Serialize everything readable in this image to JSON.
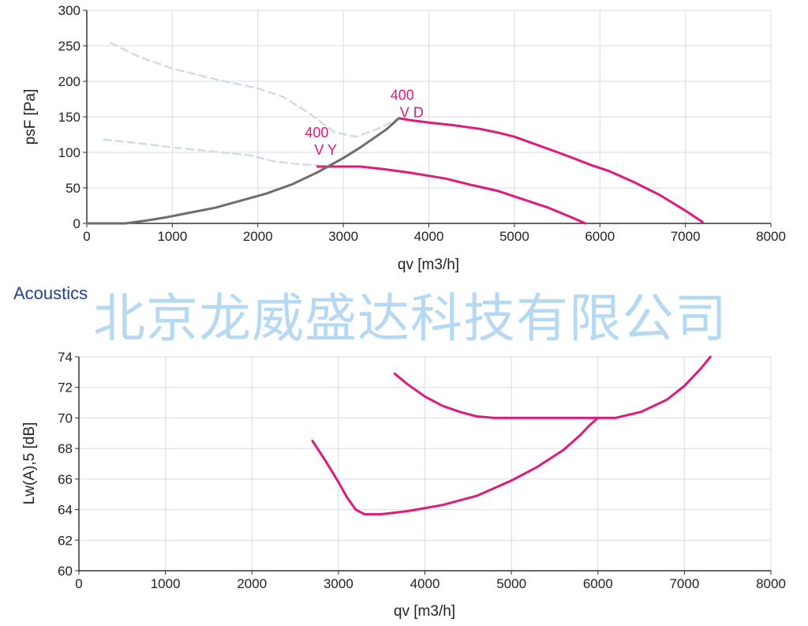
{
  "section_title": "Acoustics",
  "watermark": "北京龙威盛达科技有限公司",
  "colors": {
    "fan_curve": "#e0197d",
    "system_curve": "#6d6d6d",
    "dashed_curve": "#d3dbe8",
    "grid": "#d6dbe6",
    "section_title": "#1f3f8f",
    "watermark": "#a9d3f2"
  },
  "chart_data": [
    {
      "type": "line",
      "xlabel": "qv [m3/h]",
      "ylabel": "psF [Pa]",
      "xlim": [
        0,
        8000
      ],
      "ylim": [
        0,
        300
      ],
      "xticks": [
        0,
        1000,
        2000,
        3000,
        4000,
        5000,
        6000,
        7000,
        8000
      ],
      "yticks": [
        0,
        50,
        100,
        150,
        200,
        250,
        300
      ],
      "grid": true,
      "labels": [
        {
          "lines": [
            "400",
            "V D"
          ],
          "anchor": [
            3550,
            163
          ]
        },
        {
          "lines": [
            "400",
            "V Y"
          ],
          "anchor": [
            2550,
            110
          ]
        }
      ],
      "series": [
        {
          "role": "fan-curve-vd",
          "style": "solid",
          "color": "#e0197d",
          "points": [
            [
              3650,
              148
            ],
            [
              3800,
              145
            ],
            [
              4000,
              142
            ],
            [
              4300,
              138
            ],
            [
              4600,
              133
            ],
            [
              4800,
              128
            ],
            [
              5000,
              122
            ],
            [
              5300,
              109
            ],
            [
              5600,
              96
            ],
            [
              5900,
              82
            ],
            [
              6100,
              74
            ],
            [
              6400,
              58
            ],
            [
              6700,
              40
            ],
            [
              7000,
              18
            ],
            [
              7200,
              2
            ]
          ]
        },
        {
          "role": "fan-curve-vy",
          "style": "solid",
          "color": "#e0197d",
          "points": [
            [
              2700,
              80
            ],
            [
              3200,
              80
            ],
            [
              3500,
              76
            ],
            [
              3800,
              71
            ],
            [
              4200,
              63
            ],
            [
              4500,
              54
            ],
            [
              4800,
              46
            ],
            [
              5100,
              34
            ],
            [
              5400,
              22
            ],
            [
              5700,
              7
            ],
            [
              5830,
              0
            ]
          ]
        },
        {
          "role": "system-curve",
          "style": "solid",
          "color": "#6d6d6d",
          "points": [
            [
              0,
              0
            ],
            [
              450,
              0
            ],
            [
              700,
              4
            ],
            [
              950,
              9
            ],
            [
              1200,
              15
            ],
            [
              1500,
              22
            ],
            [
              1800,
              32
            ],
            [
              2100,
              42
            ],
            [
              2400,
              55
            ],
            [
              2700,
              72
            ],
            [
              3000,
              92
            ],
            [
              3200,
              107
            ],
            [
              3500,
              132
            ],
            [
              3650,
              148
            ]
          ]
        },
        {
          "role": "dashed-curve-upper",
          "style": "dashed",
          "color": "#d3dbe8",
          "points": [
            [
              280,
              254
            ],
            [
              600,
              235
            ],
            [
              1000,
              218
            ],
            [
              1500,
              203
            ],
            [
              2000,
              190
            ],
            [
              2300,
              178
            ],
            [
              2600,
              155
            ],
            [
              2900,
              128
            ],
            [
              3150,
              122
            ],
            [
              3400,
              133
            ],
            [
              3650,
              148
            ]
          ]
        },
        {
          "role": "dashed-curve-lower",
          "style": "dashed",
          "color": "#d3dbe8",
          "points": [
            [
              200,
              118
            ],
            [
              600,
              113
            ],
            [
              1000,
              107
            ],
            [
              1500,
              101
            ],
            [
              1900,
              96
            ],
            [
              2200,
              87
            ],
            [
              2500,
              83
            ],
            [
              2700,
              82
            ]
          ]
        }
      ]
    },
    {
      "type": "line",
      "xlabel": "qv [m3/h]",
      "ylabel": "Lw(A),5 [dB]",
      "xlim": [
        0,
        8000
      ],
      "ylim": [
        60,
        74
      ],
      "xticks": [
        0,
        1000,
        2000,
        3000,
        4000,
        5000,
        6000,
        7000,
        8000
      ],
      "yticks": [
        60,
        62,
        64,
        66,
        68,
        70,
        72,
        74
      ],
      "grid": true,
      "series": [
        {
          "role": "sound-curve-vd",
          "style": "solid",
          "color": "#e0197d",
          "points": [
            [
              3650,
              72.9
            ],
            [
              3800,
              72.2
            ],
            [
              4000,
              71.4
            ],
            [
              4200,
              70.8
            ],
            [
              4400,
              70.4
            ],
            [
              4600,
              70.1
            ],
            [
              4800,
              70.0
            ],
            [
              5000,
              70.0
            ],
            [
              5500,
              70.0
            ],
            [
              6000,
              70.0
            ],
            [
              6200,
              70.0
            ],
            [
              6500,
              70.4
            ],
            [
              6800,
              71.2
            ],
            [
              7000,
              72.1
            ],
            [
              7200,
              73.3
            ],
            [
              7300,
              74.0
            ]
          ]
        },
        {
          "role": "sound-curve-vy",
          "style": "solid",
          "color": "#e0197d",
          "points": [
            [
              2700,
              68.5
            ],
            [
              2850,
              67.2
            ],
            [
              3000,
              65.8
            ],
            [
              3100,
              64.8
            ],
            [
              3200,
              64.0
            ],
            [
              3300,
              63.7
            ],
            [
              3500,
              63.7
            ],
            [
              3800,
              63.9
            ],
            [
              4200,
              64.3
            ],
            [
              4600,
              64.9
            ],
            [
              5000,
              65.9
            ],
            [
              5300,
              66.8
            ],
            [
              5600,
              67.9
            ],
            [
              5800,
              68.9
            ],
            [
              5900,
              69.5
            ],
            [
              6000,
              70.0
            ]
          ]
        }
      ]
    }
  ]
}
